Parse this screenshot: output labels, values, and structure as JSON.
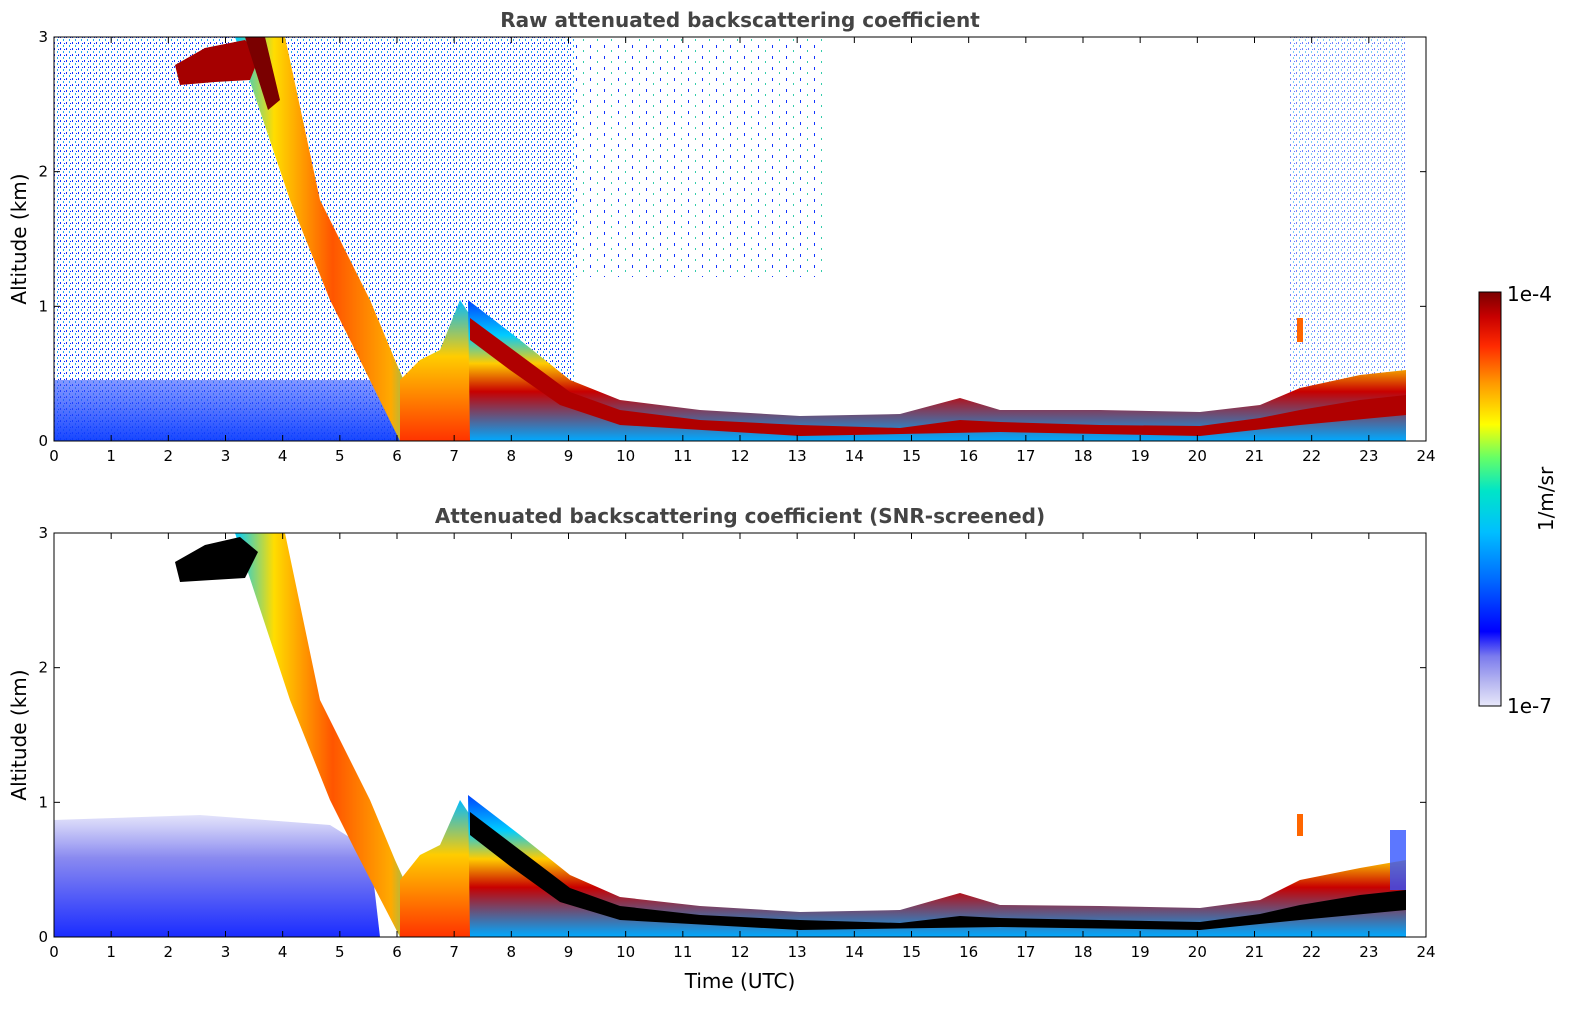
{
  "chart_data": [
    {
      "type": "heatmap",
      "title": "Raw attenuated backscattering coefficient",
      "xlabel": "",
      "ylabel": "Altitude (km)",
      "xlim": [
        0,
        24
      ],
      "ylim": [
        0,
        3
      ],
      "xticks": [
        "0",
        "1",
        "2",
        "3",
        "4",
        "5",
        "6",
        "7",
        "8",
        "9",
        "10",
        "11",
        "12",
        "13",
        "14",
        "15",
        "16",
        "17",
        "18",
        "19",
        "20",
        "21",
        "22",
        "23",
        "24"
      ],
      "yticks": [
        "0",
        "1",
        "2",
        "3"
      ],
      "layer_top_km": [
        {
          "t": 0,
          "h": 0.3
        },
        {
          "t": 6.0,
          "h": 0.4
        },
        {
          "t": 7.3,
          "h": 0.95
        },
        {
          "t": 9.0,
          "h": 0.3
        },
        {
          "t": 12,
          "h": 0.22
        },
        {
          "t": 16,
          "h": 0.3
        },
        {
          "t": 20,
          "h": 0.2
        },
        {
          "t": 22,
          "h": 0.4
        },
        {
          "t": 23.6,
          "h": 0.5
        }
      ],
      "elevated_layer": [
        {
          "t": 2.2,
          "h": 2.75
        },
        {
          "t": 3.5,
          "h": 2.7
        },
        {
          "t": 4.5,
          "h": 1.8
        },
        {
          "t": 5.3,
          "h": 1.0
        },
        {
          "t": 6.0,
          "h": 0.3
        }
      ]
    },
    {
      "type": "heatmap",
      "title": "Attenuated backscattering coefficient (SNR-screened)",
      "xlabel": "Time (UTC)",
      "ylabel": "Altitude (km)",
      "xlim": [
        0,
        24
      ],
      "ylim": [
        0,
        3
      ],
      "xticks": [
        "0",
        "1",
        "2",
        "3",
        "4",
        "5",
        "6",
        "7",
        "8",
        "9",
        "10",
        "11",
        "12",
        "13",
        "14",
        "15",
        "16",
        "17",
        "18",
        "19",
        "20",
        "21",
        "22",
        "23",
        "24"
      ],
      "yticks": [
        "0",
        "1",
        "2",
        "3"
      ],
      "screened": true
    }
  ],
  "colorbar": {
    "label": "1/m/sr",
    "max_label": "1e-4",
    "min_label": "1e-7",
    "colors": [
      "#e8e8fa",
      "#b4b4f0",
      "#7b7bee",
      "#0000ff",
      "#0066ff",
      "#00bfff",
      "#00e5c8",
      "#66ff66",
      "#ffff00",
      "#ff9900",
      "#ff2a00",
      "#c80000",
      "#7a0000"
    ]
  }
}
